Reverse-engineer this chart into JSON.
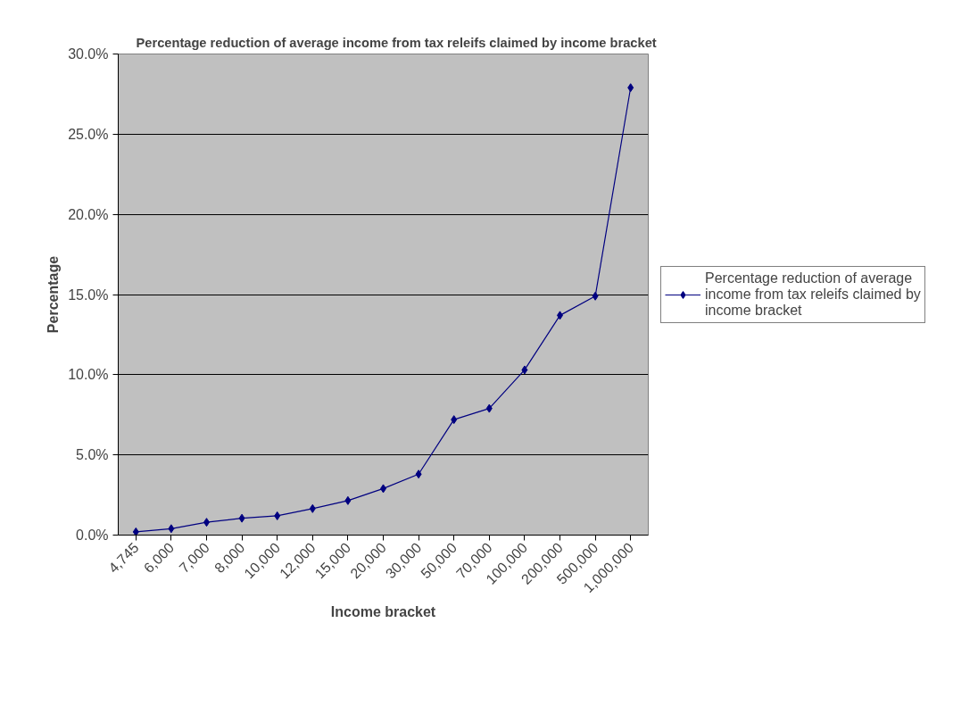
{
  "chart_data": {
    "type": "line",
    "title": "Percentage reduction of average income from tax releifs claimed by income bracket",
    "xlabel": "Income bracket",
    "ylabel": "Percentage",
    "categories": [
      "4,745",
      "6,000",
      "7,000",
      "8,000",
      "10,000",
      "12,000",
      "15,000",
      "20,000",
      "30,000",
      "50,000",
      "70,000",
      "100,000",
      "200,000",
      "500,000",
      "1,000,000"
    ],
    "series": [
      {
        "name": "Percentage reduction of average income from tax releifs claimed by income bracket",
        "color": "#000080",
        "values": [
          0.2,
          0.4,
          0.8,
          1.05,
          1.2,
          1.65,
          2.15,
          2.9,
          3.8,
          7.2,
          7.9,
          10.3,
          13.7,
          14.9,
          27.9
        ]
      }
    ],
    "ylim": [
      0,
      30
    ],
    "yticks": [
      {
        "value": 0,
        "label": "0.0%"
      },
      {
        "value": 5,
        "label": "5.0%"
      },
      {
        "value": 10,
        "label": "10.0%"
      },
      {
        "value": 15,
        "label": "15.0%"
      },
      {
        "value": 20,
        "label": "20.0%"
      },
      {
        "value": 25,
        "label": "25.0%"
      },
      {
        "value": 30,
        "label": "30.0%"
      }
    ],
    "grid": "y",
    "legend": "right",
    "marker": "diamond",
    "line_style": "solid"
  }
}
